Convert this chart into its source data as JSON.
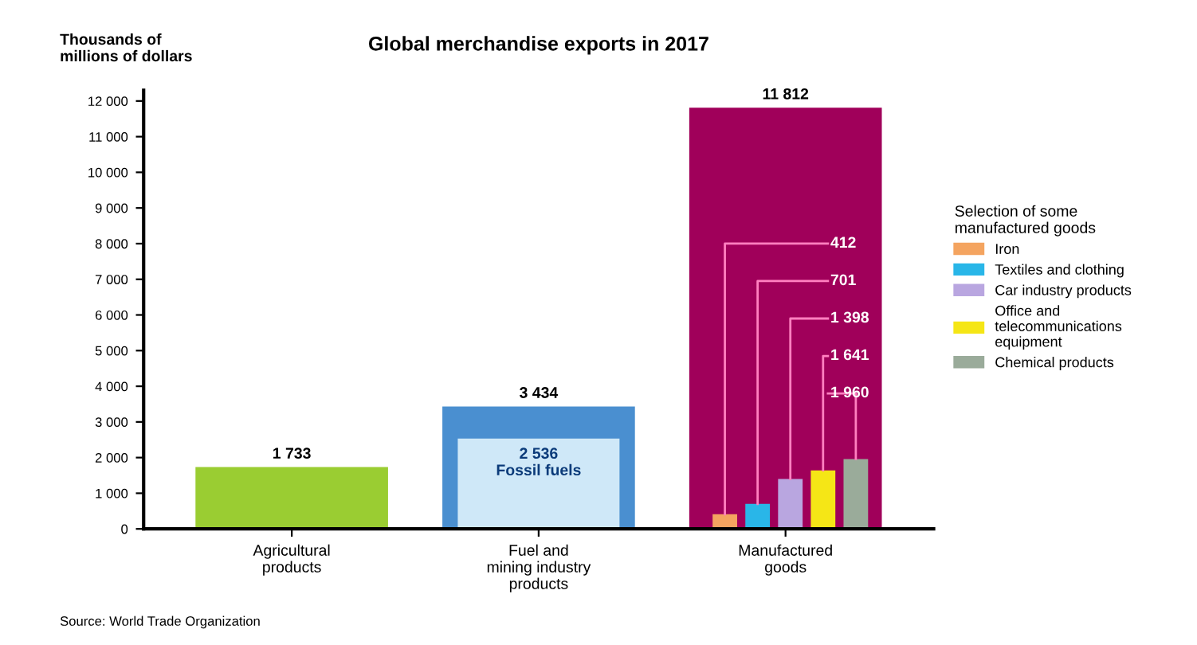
{
  "chart_data": {
    "type": "bar",
    "title": "Global merchandise exports in 2017",
    "ylabel": "Thousands of\nmillions of dollars",
    "categories": [
      "Agricultural\nproducts",
      "Fuel and\nmining industry\nproducts",
      "Manufactured\ngoods"
    ],
    "series": [
      {
        "values": [
          1733,
          3434,
          11812
        ],
        "colors": [
          "#9acd32",
          "#4a8fd0",
          "#a0005a"
        ],
        "value_labels": [
          "1 733",
          "3 434",
          "11 812"
        ]
      },
      {
        "name": "Fossil fuels",
        "values": [
          null,
          2536,
          null
        ],
        "color": "#cfe8f8",
        "value_labels": [
          null,
          "2 536",
          null
        ]
      },
      {
        "name": "Iron",
        "values": [
          null,
          null,
          412
        ],
        "color": "#f4a460",
        "value_labels": [
          null,
          null,
          "412"
        ]
      },
      {
        "name": "Textiles and clothing",
        "values": [
          null,
          null,
          701
        ],
        "color": "#29b6e8",
        "value_labels": [
          null,
          null,
          "701"
        ]
      },
      {
        "name": "Car industry products",
        "values": [
          null,
          null,
          1398
        ],
        "color": "#b9a6e0",
        "value_labels": [
          null,
          null,
          "1 398"
        ]
      },
      {
        "name": "Office and\ntelecommunications\nequipment",
        "values": [
          null,
          null,
          1641
        ],
        "color": "#f5e616",
        "value_labels": [
          null,
          null,
          "1 641"
        ]
      },
      {
        "name": "Chemical products",
        "values": [
          null,
          null,
          1960
        ],
        "color": "#9aab9a",
        "value_labels": [
          null,
          null,
          "1 960"
        ]
      }
    ],
    "ylim": [
      0,
      12300
    ],
    "yticks": [
      0,
      {
        "value": 1000,
        "label": "1 000"
      },
      {
        "value": 2000,
        "label": "2 000"
      },
      {
        "value": 3000,
        "label": "3 000"
      },
      {
        "value": 4000,
        "label": "4 000"
      },
      {
        "value": 5000,
        "label": "5 000"
      },
      {
        "value": 6000,
        "label": "6 000"
      },
      {
        "value": 7000,
        "label": "7 000"
      },
      {
        "value": 8000,
        "label": "8 000"
      },
      {
        "value": 9000,
        "label": "9 000"
      },
      {
        "value": 10000,
        "label": "10 000"
      },
      {
        "value": 11000,
        "label": "11 000"
      },
      {
        "value": 12000,
        "label": "12 000"
      }
    ],
    "legend": "right",
    "legend_title": "Selection of some\nmanufactured goods",
    "grid": false,
    "annotations": [
      "Source: World Trade Organization"
    ]
  }
}
